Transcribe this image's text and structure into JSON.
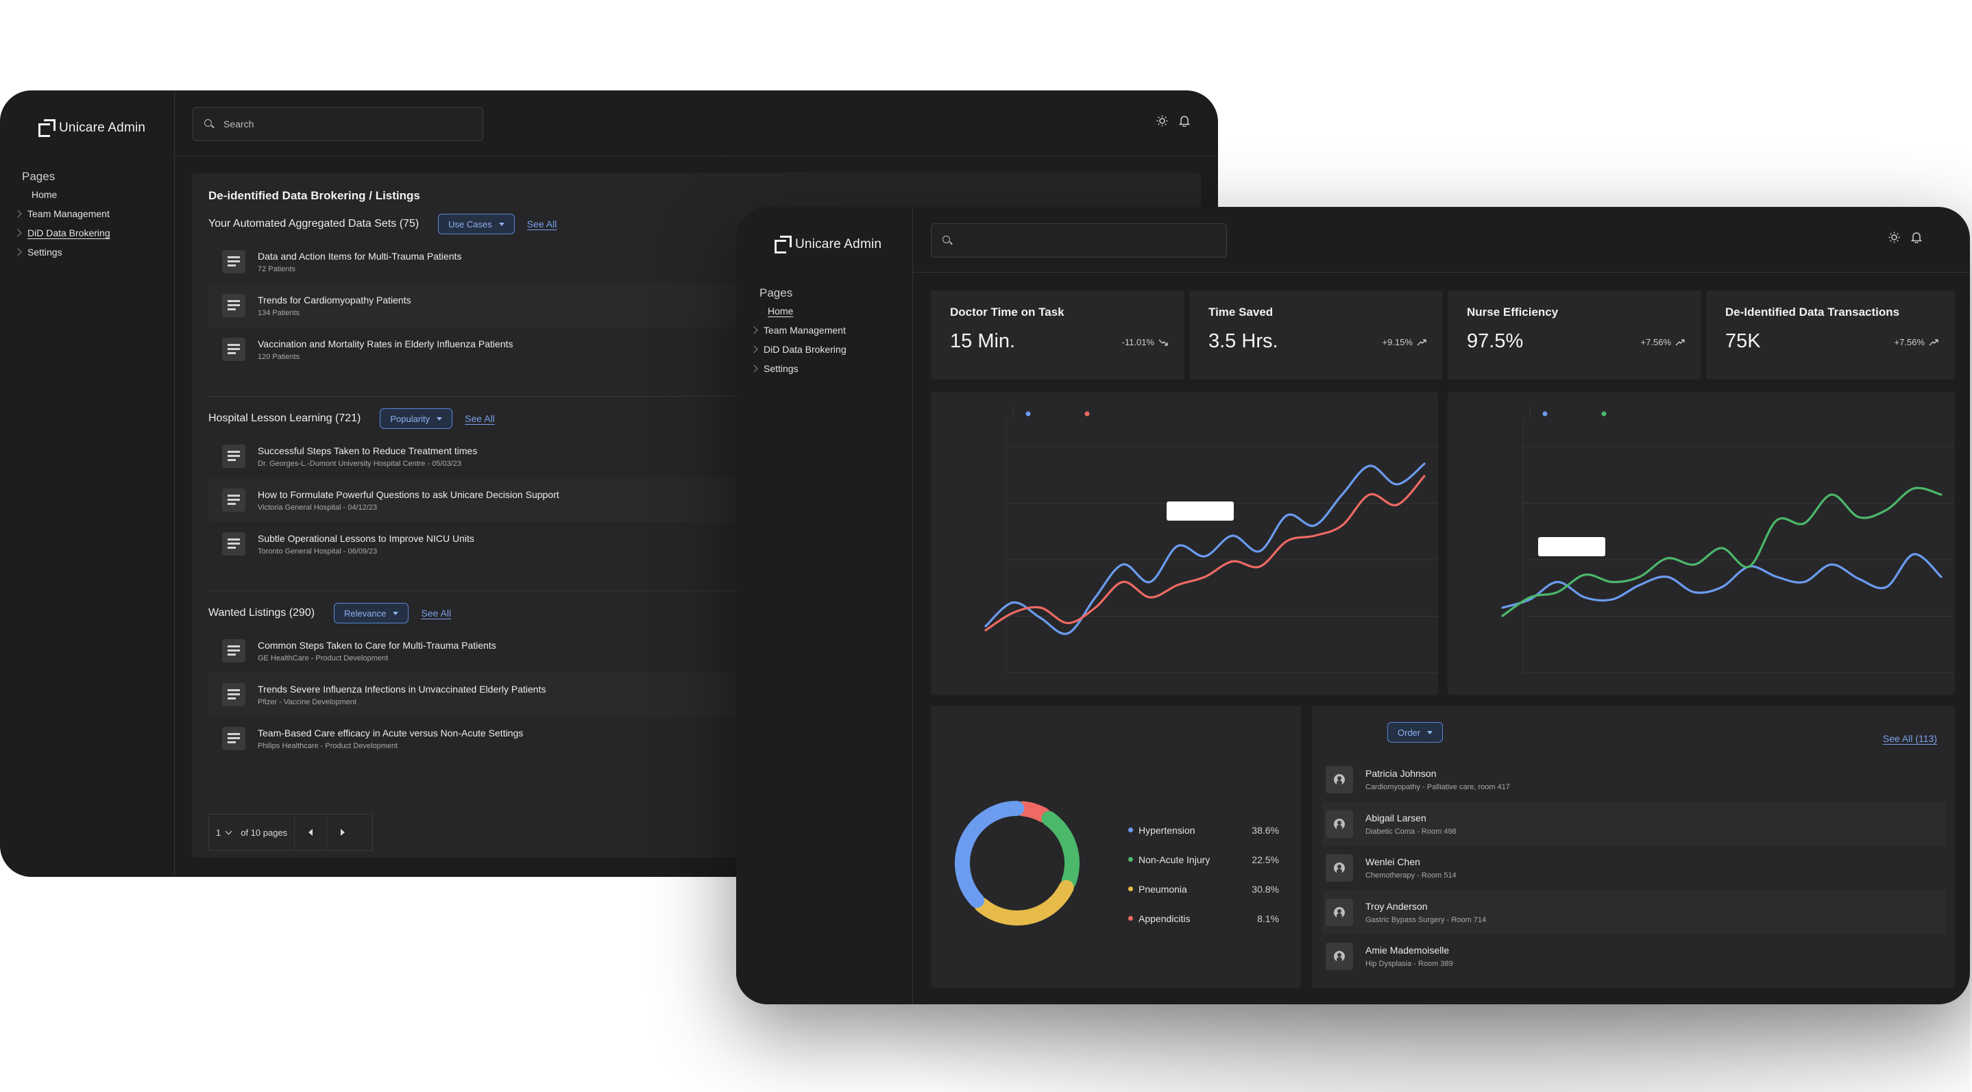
{
  "back_window": {
    "brand": "Unicare Admin",
    "search": {
      "placeholder": "Search"
    },
    "nav": {
      "heading": "Pages",
      "items": [
        {
          "label": "Home"
        },
        {
          "label": "Team Management"
        },
        {
          "label": "DiD Data Brokering"
        },
        {
          "label": "Settings"
        }
      ]
    },
    "page_title": "De-identified Data Brokering / Listings",
    "sections": [
      {
        "title": "Your Automated Aggregated Data Sets (75)",
        "filter": "Use Cases",
        "see_all": "See All",
        "items": [
          {
            "title": "Data and Action Items for Multi-Trauma Patients",
            "sub": "72 Patients"
          },
          {
            "title": "Trends for Cardiomyopathy Patients",
            "sub": "134 Patients"
          },
          {
            "title": "Vaccination and Mortality Rates in Elderly Influenza Patients",
            "sub": "120 Patients"
          }
        ]
      },
      {
        "title": "Hospital Lesson Learning (721)",
        "filter": "Popularity",
        "see_all": "See All",
        "items": [
          {
            "title": "Successful Steps Taken to Reduce Treatment times",
            "sub": "Dr. Georges-L.-Dumont University Hospital Centre - 05/03/23"
          },
          {
            "title": "How to Formulate Powerful Questions to ask Unicare Decision Support",
            "sub": "Victoria General Hospital - 04/12/23"
          },
          {
            "title": "Subtle Operational Lessons to Improve NICU Units",
            "sub": "Toronto General Hospital - 06/09/23"
          }
        ]
      },
      {
        "title": "Wanted Listings (290)",
        "filter": "Relevance",
        "see_all": "See All",
        "items": [
          {
            "title": "Common Steps Taken to Care for Multi-Trauma Patients",
            "sub": "GE HealthCare - Product Development"
          },
          {
            "title": "Trends Severe Influenza Infections in Unvaccinated Elderly Patients",
            "sub": "Pfizer - Vaccine Development"
          },
          {
            "title": "Team-Based Care efficacy in Acute versus Non-Acute Settings",
            "sub": "Philips Healthcare - Product Development"
          }
        ]
      }
    ],
    "pager": {
      "page": "1",
      "of_label": "of 10 pages"
    }
  },
  "front_window": {
    "brand": "Unicare Admin",
    "search": {
      "placeholder": ""
    },
    "nav": {
      "heading": "Pages",
      "items": [
        {
          "label": "Home"
        },
        {
          "label": "Team Management"
        },
        {
          "label": "DiD Data Brokering"
        },
        {
          "label": "Settings"
        }
      ]
    },
    "stats": [
      {
        "label": "Doctor Time on Task",
        "value": "15 Min.",
        "delta": "-11.01%",
        "trend": "down"
      },
      {
        "label": "Time Saved",
        "value": "3.5 Hrs.",
        "delta": "+9.15%",
        "trend": "up"
      },
      {
        "label": "Nurse Efficiency",
        "value": "97.5%",
        "delta": "+7.56%",
        "trend": "up"
      },
      {
        "label": "De-Identified Data Transactions",
        "value": "75K",
        "delta": "+7.56%",
        "trend": "up"
      }
    ],
    "colors": {
      "blue": "#6b9cf0",
      "red": "#ee6a63",
      "green": "#4cb86a",
      "yellow": "#e6bb4a"
    },
    "patients": {
      "filter": "Order",
      "see_all": "See All (113)",
      "items": [
        {
          "name": "Patricia Johnson",
          "sub": "Cardiomyopathy - Palliative care, room 417"
        },
        {
          "name": "Abigail Larsen",
          "sub": "Diabetic Coma - Room 498"
        },
        {
          "name": "Wenlei Chen",
          "sub": "Chemotherapy - Room 514"
        },
        {
          "name": "Troy Anderson",
          "sub": "Gastric Bypass Surgery - Room 714"
        },
        {
          "name": "Amie Mademoiselle",
          "sub": "Hip Dysplasia - Room 389"
        }
      ]
    }
  },
  "chart_data": [
    {
      "type": "line",
      "title": "",
      "x": [
        0,
        1,
        2,
        3,
        4,
        5,
        6,
        7,
        8,
        9,
        10,
        11,
        12,
        13,
        14,
        15,
        16
      ],
      "series": [
        {
          "color": "#6b9cf0",
          "values": [
            12,
            35,
            20,
            5,
            40,
            72,
            55,
            90,
            80,
            100,
            85,
            120,
            110,
            140,
            168,
            150,
            170
          ]
        },
        {
          "color": "#ee6a63",
          "values": [
            8,
            25,
            30,
            15,
            30,
            55,
            40,
            52,
            60,
            75,
            70,
            95,
            100,
            110,
            140,
            130,
            158
          ]
        }
      ],
      "grid": true,
      "legend": "top-left"
    },
    {
      "type": "line",
      "title": "",
      "x": [
        0,
        1,
        2,
        3,
        4,
        5,
        6,
        7,
        8,
        9,
        10,
        11,
        12,
        13,
        14,
        15,
        16
      ],
      "series": [
        {
          "color": "#6b9cf0",
          "values": [
            30,
            38,
            55,
            40,
            38,
            52,
            60,
            45,
            50,
            70,
            60,
            55,
            72,
            58,
            50,
            82,
            60
          ]
        },
        {
          "color": "#4cb86a",
          "values": [
            22,
            40,
            45,
            62,
            55,
            60,
            78,
            72,
            88,
            70,
            115,
            112,
            140,
            118,
            125,
            146,
            140
          ]
        }
      ],
      "grid": true,
      "legend": "top-left"
    },
    {
      "type": "pie",
      "labels": [
        "Hypertension",
        "Non-Acute Injury",
        "Pneumonia",
        "Appendicitis"
      ],
      "values": [
        38.6,
        22.5,
        30.8,
        8.1
      ],
      "display": [
        "38.6%",
        "22.5%",
        "30.8%",
        "8.1%"
      ],
      "colors": [
        "#6b9cf0",
        "#4cb86a",
        "#e6bb4a",
        "#ee6a63"
      ],
      "legend": "right"
    }
  ]
}
